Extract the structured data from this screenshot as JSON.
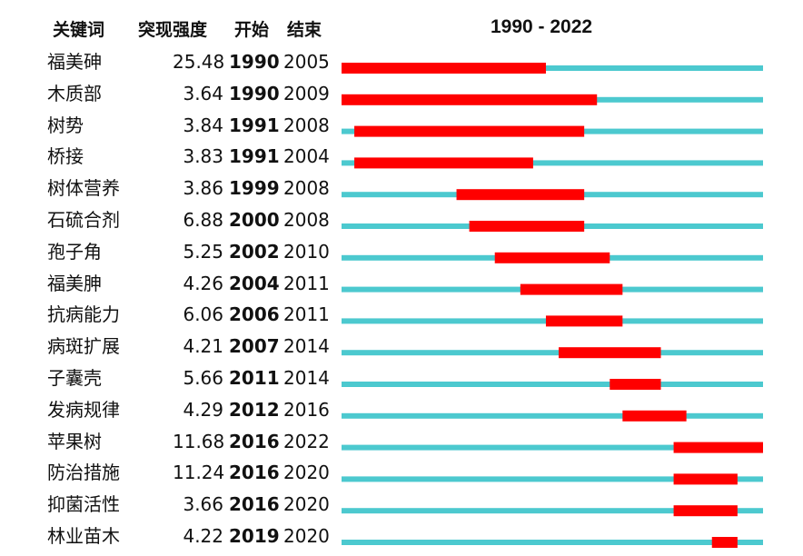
{
  "headers": {
    "keyword": "关键词",
    "strength": "突现强度",
    "begin": "开始",
    "end": "结束",
    "range": "1990 - 2022"
  },
  "colors": {
    "base": "#4cc9cf",
    "burst": "#ff0000"
  },
  "chart_data": {
    "type": "timeline",
    "year_range": [
      1990,
      2022
    ],
    "rows": [
      {
        "keyword": "福美砷",
        "strength": "25.48",
        "begin": "1990",
        "end": "2005"
      },
      {
        "keyword": "木质部",
        "strength": "3.64",
        "begin": "1990",
        "end": "2009"
      },
      {
        "keyword": "树势",
        "strength": "3.84",
        "begin": "1991",
        "end": "2008"
      },
      {
        "keyword": "桥接",
        "strength": "3.83",
        "begin": "1991",
        "end": "2004"
      },
      {
        "keyword": "树体营养",
        "strength": "3.86",
        "begin": "1999",
        "end": "2008"
      },
      {
        "keyword": "石硫合剂",
        "strength": "6.88",
        "begin": "2000",
        "end": "2008"
      },
      {
        "keyword": "孢子角",
        "strength": "5.25",
        "begin": "2002",
        "end": "2010"
      },
      {
        "keyword": "福美胂",
        "strength": "4.26",
        "begin": "2004",
        "end": "2011"
      },
      {
        "keyword": "抗病能力",
        "strength": "6.06",
        "begin": "2006",
        "end": "2011"
      },
      {
        "keyword": "病斑扩展",
        "strength": "4.21",
        "begin": "2007",
        "end": "2014"
      },
      {
        "keyword": "子囊壳",
        "strength": "5.66",
        "begin": "2011",
        "end": "2014"
      },
      {
        "keyword": "发病规律",
        "strength": "4.29",
        "begin": "2012",
        "end": "2016"
      },
      {
        "keyword": "苹果树",
        "strength": "11.68",
        "begin": "2016",
        "end": "2022"
      },
      {
        "keyword": "防治措施",
        "strength": "11.24",
        "begin": "2016",
        "end": "2020"
      },
      {
        "keyword": "抑菌活性",
        "strength": "3.66",
        "begin": "2016",
        "end": "2020"
      },
      {
        "keyword": "林业苗木",
        "strength": "4.22",
        "begin": "2019",
        "end": "2020"
      }
    ]
  }
}
